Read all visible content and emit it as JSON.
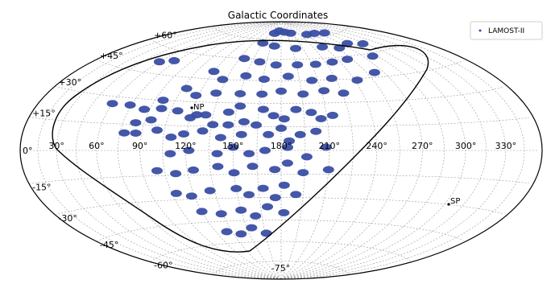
{
  "chart_data": {
    "type": "scatter",
    "projection": "aitoff-like (sky map)",
    "title": "Galactic Coordinates",
    "legend": {
      "label": "LAMOST-II",
      "position": "top-right"
    },
    "series": [
      {
        "name": "LAMOST-II",
        "points": [
          [
            162,
            80
          ],
          [
            174,
            82
          ],
          [
            190,
            81
          ],
          [
            206,
            80
          ],
          [
            242,
            78
          ],
          [
            262,
            78
          ],
          [
            284,
            77
          ],
          [
            150,
            72
          ],
          [
            170,
            70
          ],
          [
            200,
            68
          ],
          [
            238,
            68
          ],
          [
            258,
            66
          ],
          [
            278,
            68
          ],
          [
            296,
            66
          ],
          [
            140,
            60
          ],
          [
            158,
            58
          ],
          [
            175,
            56
          ],
          [
            196,
            56
          ],
          [
            214,
            56
          ],
          [
            232,
            57
          ],
          [
            250,
            58
          ],
          [
            280,
            58
          ],
          [
            120,
            50
          ],
          [
            132,
            45
          ],
          [
            150,
            48
          ],
          [
            166,
            46
          ],
          [
            186,
            48
          ],
          [
            205,
            45
          ],
          [
            222,
            46
          ],
          [
            242,
            44
          ],
          [
            262,
            48
          ],
          [
            108,
            38
          ],
          [
            118,
            34
          ],
          [
            132,
            36
          ],
          [
            150,
            36
          ],
          [
            166,
            36
          ],
          [
            180,
            38
          ],
          [
            196,
            36
          ],
          [
            212,
            38
          ],
          [
            226,
            36
          ],
          [
            98,
            25
          ],
          [
            110,
            24
          ],
          [
            120,
            20
          ],
          [
            130,
            22
          ],
          [
            145,
            24
          ],
          [
            152,
            28
          ],
          [
            168,
            26
          ],
          [
            175,
            22
          ],
          [
            182,
            20
          ],
          [
            190,
            26
          ],
          [
            200,
            24
          ],
          [
            206,
            20
          ],
          [
            214,
            22
          ],
          [
            100,
            12
          ],
          [
            110,
            8
          ],
          [
            118,
            10
          ],
          [
            130,
            12
          ],
          [
            142,
            8
          ],
          [
            155,
            10
          ],
          [
            172,
            10
          ],
          [
            180,
            14
          ],
          [
            185,
            6
          ],
          [
            192,
            10
          ],
          [
            202,
            12
          ],
          [
            110,
            -2
          ],
          [
            122,
            0
          ],
          [
            140,
            -2
          ],
          [
            150,
            2
          ],
          [
            160,
            -2
          ],
          [
            170,
            0
          ],
          [
            184,
            2
          ],
          [
            196,
            -4
          ],
          [
            208,
            2
          ],
          [
            100,
            -12
          ],
          [
            112,
            -14
          ],
          [
            124,
            -12
          ],
          [
            140,
            -10
          ],
          [
            150,
            -14
          ],
          [
            162,
            -10
          ],
          [
            176,
            -12
          ],
          [
            184,
            -8
          ],
          [
            194,
            -14
          ],
          [
            210,
            -12
          ],
          [
            108,
            -26
          ],
          [
            118,
            -28
          ],
          [
            132,
            -25
          ],
          [
            150,
            -24
          ],
          [
            158,
            -28
          ],
          [
            168,
            -24
          ],
          [
            176,
            -30
          ],
          [
            182,
            -22
          ],
          [
            190,
            -28
          ],
          [
            120,
            -38
          ],
          [
            134,
            -40
          ],
          [
            150,
            -38
          ],
          [
            160,
            -42
          ],
          [
            170,
            -36
          ],
          [
            182,
            -40
          ],
          [
            130,
            -52
          ],
          [
            142,
            -54
          ],
          [
            154,
            -50
          ],
          [
            166,
            -54
          ],
          [
            60,
            26
          ],
          [
            74,
            26
          ],
          [
            86,
            24
          ],
          [
            96,
            30
          ],
          [
            60,
            52
          ],
          [
            72,
            54
          ],
          [
            84,
            16
          ],
          [
            94,
            18
          ],
          [
            86,
            10
          ],
          [
            78,
            10
          ],
          [
            124,
            22
          ],
          [
            136,
            16
          ],
          [
            146,
            16
          ],
          [
            156,
            18
          ],
          [
            164,
            16
          ]
        ]
      }
    ],
    "grid": true,
    "parallels_labels": [
      "+60°",
      "+45°",
      "+30°",
      "+15°",
      "0°",
      "-15°",
      "-30°",
      "-45°",
      "-60°",
      "-75°"
    ],
    "meridian_labels": [
      "30°",
      "60°",
      "90°",
      "120°",
      "150°",
      "180°",
      "210°",
      "240°",
      "270°",
      "300°",
      "330°"
    ],
    "annotations": [
      "NP",
      "SP"
    ]
  }
}
